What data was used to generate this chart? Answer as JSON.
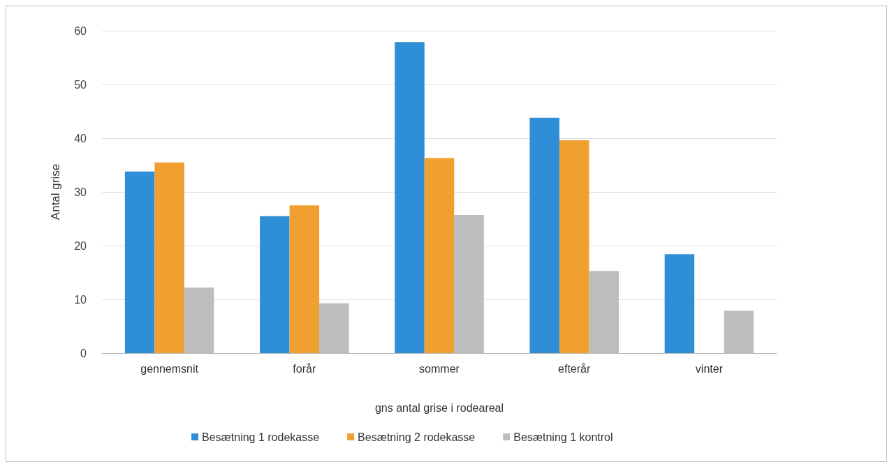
{
  "chart_data": {
    "type": "bar",
    "xlabel": "gns antal grise i rodeareal",
    "ylabel": "Antal grise",
    "categories": [
      "gennemsnit",
      "forår",
      "sommer",
      "efterår",
      "vinter"
    ],
    "series": [
      {
        "name": "Besætning 1 rodekasse",
        "color": "#2e8fd6",
        "values": [
          33.8,
          25.5,
          57.9,
          43.8,
          18.4
        ]
      },
      {
        "name": "Besætning 2 rodekasse",
        "color": "#f0a030",
        "values": [
          35.5,
          27.5,
          36.3,
          39.6,
          null
        ]
      },
      {
        "name": "Besætning 1 kontrol",
        "color": "#bdbdbd",
        "values": [
          12.2,
          9.3,
          25.7,
          15.3,
          7.9
        ]
      }
    ],
    "ylim": [
      0,
      60
    ],
    "yticks": [
      0,
      10,
      20,
      30,
      40,
      50,
      60
    ],
    "grid": "y",
    "legend": "bottom"
  }
}
